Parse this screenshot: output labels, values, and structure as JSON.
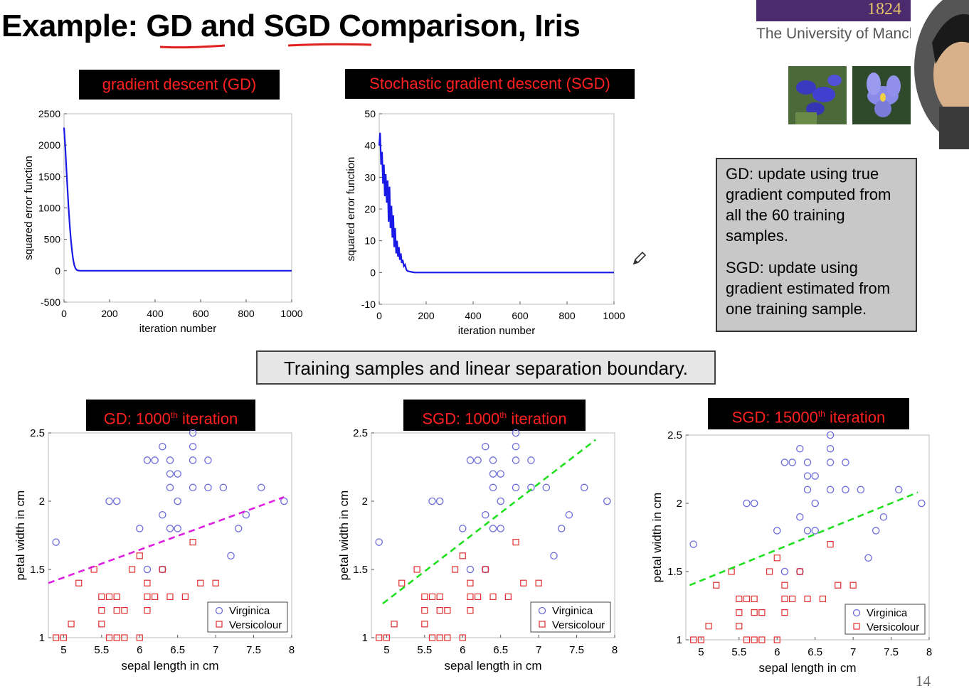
{
  "slide": {
    "title": "Example: GD and SGD Comparison, Iris",
    "university_year": "1824",
    "university_name": "The University of Manche",
    "page_number": "14",
    "label_gd": "gradient descent (GD)",
    "label_sgd": "Stochastic gradient descent (SGD)",
    "label_gd1000_prefix": "GD: 1000",
    "label_sgd1000_prefix": "SGD: 1000",
    "label_sgd15000_prefix": "SGD: 15000",
    "label_suffix_sup": "th",
    "label_suffix": " iteration",
    "notes_gd": "GD: update using true gradient computed from all the 60 training samples.",
    "notes_sgd": "SGD: update using gradient estimated from one training sample.",
    "banner": "Training samples and linear separation boundary."
  },
  "colors": {
    "title_underline": "#e0201c",
    "banner_purple": "#4b2a6e",
    "label_red": "#ff2020",
    "curve_blue": "#1a1ae6",
    "virginica": "#6b6bdb",
    "versicolour": "#e03030",
    "gd_line": "#e020e0",
    "sgd_line": "#20e020"
  },
  "chart_data": [
    {
      "id": "gd-error",
      "type": "line",
      "xlabel": "iteration number",
      "ylabel": "squared error function",
      "xlim": [
        0,
        1000
      ],
      "ylim": [
        -500,
        2500
      ],
      "xticks": [
        0,
        200,
        400,
        600,
        800,
        1000
      ],
      "yticks": [
        -500,
        0,
        500,
        1000,
        1500,
        2000,
        2500
      ],
      "series": [
        {
          "values_x": [
            0,
            5,
            10,
            15,
            20,
            25,
            30,
            35,
            40,
            45,
            50,
            55,
            60,
            70,
            80,
            100,
            200,
            400,
            600,
            800,
            1000
          ],
          "values_y": [
            2280,
            2000,
            1650,
            1320,
            1000,
            730,
            500,
            320,
            180,
            90,
            40,
            15,
            5,
            0,
            0,
            0,
            0,
            0,
            0,
            0,
            0
          ]
        }
      ]
    },
    {
      "id": "sgd-error",
      "type": "line",
      "xlabel": "iteration number",
      "ylabel": "squared error function",
      "xlim": [
        0,
        1000
      ],
      "ylim": [
        -10,
        50
      ],
      "xticks": [
        0,
        200,
        400,
        600,
        800,
        1000
      ],
      "yticks": [
        -10,
        0,
        10,
        20,
        30,
        40,
        50
      ],
      "series": [
        {
          "values_x": [
            0,
            4,
            8,
            12,
            16,
            20,
            24,
            28,
            32,
            36,
            40,
            44,
            48,
            52,
            56,
            60,
            64,
            68,
            72,
            76,
            80,
            84,
            88,
            92,
            96,
            100,
            105,
            110,
            115,
            120,
            130,
            150,
            200,
            300,
            400,
            500,
            600,
            700,
            800,
            900,
            1000
          ],
          "values_y": [
            40,
            44,
            34,
            38,
            28,
            34,
            24,
            31,
            22,
            29,
            16,
            27,
            14,
            21,
            11,
            18,
            8,
            14,
            6,
            10,
            5,
            8,
            4,
            6,
            3,
            4,
            2,
            2.5,
            1,
            0.5,
            0.3,
            0,
            0,
            0,
            0,
            0,
            0,
            0,
            0,
            0,
            0
          ]
        }
      ]
    },
    {
      "id": "scatter-gd-1000",
      "type": "scatter",
      "xlabel": "sepal length in cm",
      "ylabel": "petal width in cm",
      "xlim": [
        4.8,
        8
      ],
      "ylim": [
        1,
        2.5
      ],
      "xticks": [
        5,
        5.5,
        6,
        6.5,
        7,
        7.5,
        8
      ],
      "yticks": [
        1,
        1.5,
        2,
        2.5
      ],
      "legend": [
        "Virginica",
        "Versicolour"
      ],
      "legend_position": "bottom-right",
      "boundary": {
        "x": [
          4.8,
          7.9
        ],
        "y": [
          1.4,
          2.03
        ],
        "style": "dashed",
        "color": "magenta"
      }
    },
    {
      "id": "scatter-sgd-1000",
      "type": "scatter",
      "xlabel": "sepal length in cm",
      "ylabel": "petal width in cm",
      "xlim": [
        4.8,
        8
      ],
      "ylim": [
        1,
        2.5
      ],
      "xticks": [
        5,
        5.5,
        6,
        6.5,
        7,
        7.5,
        8
      ],
      "yticks": [
        1,
        1.5,
        2,
        2.5
      ],
      "legend": [
        "Virginica",
        "Versicolour"
      ],
      "legend_position": "bottom-right",
      "boundary": {
        "x": [
          4.95,
          7.75
        ],
        "y": [
          1.25,
          2.45
        ],
        "style": "dashed",
        "color": "green"
      }
    },
    {
      "id": "scatter-sgd-15000",
      "type": "scatter",
      "xlabel": "sepal length in cm",
      "ylabel": "petal width in cm",
      "xlim": [
        4.8,
        8
      ],
      "ylim": [
        1,
        2.5
      ],
      "xticks": [
        5,
        5.5,
        6,
        6.5,
        7,
        7.5,
        8
      ],
      "yticks": [
        1,
        1.5,
        2,
        2.5
      ],
      "legend": [
        "Virginica",
        "Versicolour"
      ],
      "legend_position": "bottom-right",
      "boundary": {
        "x": [
          4.85,
          7.85
        ],
        "y": [
          1.4,
          2.08
        ],
        "style": "dashed",
        "color": "green"
      }
    }
  ],
  "iris_points": {
    "virginica": [
      [
        4.9,
        1.7
      ],
      [
        5.6,
        2.0
      ],
      [
        5.7,
        2.0
      ],
      [
        6.0,
        1.8
      ],
      [
        6.1,
        2.3
      ],
      [
        6.1,
        1.5
      ],
      [
        6.2,
        2.3
      ],
      [
        6.3,
        2.4
      ],
      [
        6.3,
        1.9
      ],
      [
        6.3,
        1.5
      ],
      [
        6.4,
        2.3
      ],
      [
        6.4,
        2.2
      ],
      [
        6.4,
        2.1
      ],
      [
        6.4,
        1.8
      ],
      [
        6.5,
        2.2
      ],
      [
        6.5,
        2.0
      ],
      [
        6.5,
        1.8
      ],
      [
        6.7,
        2.5
      ],
      [
        6.7,
        2.4
      ],
      [
        6.7,
        2.3
      ],
      [
        6.7,
        2.1
      ],
      [
        6.9,
        2.3
      ],
      [
        6.9,
        2.1
      ],
      [
        7.1,
        2.1
      ],
      [
        7.2,
        1.6
      ],
      [
        7.3,
        1.8
      ],
      [
        7.4,
        1.9
      ],
      [
        7.6,
        2.1
      ],
      [
        7.9,
        2.0
      ]
    ],
    "versicolour": [
      [
        4.9,
        1.0
      ],
      [
        5.0,
        1.0
      ],
      [
        5.1,
        1.1
      ],
      [
        5.2,
        1.4
      ],
      [
        5.4,
        1.5
      ],
      [
        5.5,
        1.3
      ],
      [
        5.5,
        1.2
      ],
      [
        5.5,
        1.1
      ],
      [
        5.6,
        1.3
      ],
      [
        5.6,
        1.0
      ],
      [
        5.7,
        1.3
      ],
      [
        5.7,
        1.2
      ],
      [
        5.7,
        1.0
      ],
      [
        5.8,
        1.2
      ],
      [
        5.8,
        1.0
      ],
      [
        5.9,
        1.5
      ],
      [
        6.0,
        1.6
      ],
      [
        6.0,
        1.0
      ],
      [
        6.1,
        1.4
      ],
      [
        6.1,
        1.3
      ],
      [
        6.1,
        1.2
      ],
      [
        6.2,
        1.3
      ],
      [
        6.3,
        1.5
      ],
      [
        6.4,
        1.3
      ],
      [
        6.6,
        1.3
      ],
      [
        6.7,
        1.7
      ],
      [
        6.8,
        1.4
      ],
      [
        7.0,
        1.4
      ]
    ]
  }
}
